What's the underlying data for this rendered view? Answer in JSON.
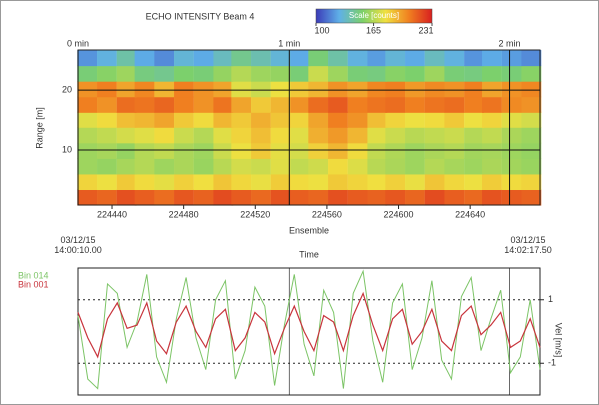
{
  "chart_data": [
    {
      "type": "heatmap",
      "title": "ECHO INTENSITY Beam 4",
      "xlabel": "Ensemble",
      "ylabel": "Range [m]",
      "colorbar_title": "Scale [counts]",
      "zlim": [
        100,
        231
      ],
      "zticks": [
        100,
        165,
        231
      ],
      "colorscale": [
        "#3b3bb8",
        "#5fb0e8",
        "#7cd06a",
        "#f0e040",
        "#f08020",
        "#d82020"
      ],
      "xlim": [
        224421,
        224679
      ],
      "xticks": [
        224440,
        224480,
        224520,
        224560,
        224600,
        224640
      ],
      "x2ticks": [
        {
          "value": 224421,
          "label": "0 min"
        },
        {
          "value": 224539,
          "label": "1 min"
        },
        {
          "value": 224662,
          "label": "2 min"
        }
      ],
      "ylim": [
        0.8,
        26.7
      ],
      "yticks": [
        10,
        20
      ],
      "grid": true,
      "x": [
        224426,
        224437,
        224448,
        224458,
        224469,
        224480,
        224491,
        224502,
        224512,
        224523,
        224534,
        224545,
        224555,
        224566,
        224577,
        224588,
        224598,
        224609,
        224620,
        224631,
        224642,
        224652,
        224663,
        224674
      ],
      "y": [
        2.1,
        4.7,
        7.3,
        9.9,
        12.5,
        15.1,
        17.6,
        20.2,
        22.8,
        25.4
      ],
      "z": [
        [
          215,
          212,
          218,
          214,
          210,
          216,
          213,
          219,
          215,
          211,
          217,
          214,
          212,
          218,
          215,
          213,
          216,
          212,
          219,
          214,
          211,
          217,
          215,
          213
        ],
        [
          182,
          178,
          185,
          180,
          176,
          183,
          179,
          186,
          181,
          177,
          184,
          180,
          178,
          185,
          182,
          179,
          183,
          177,
          186,
          181,
          178,
          184,
          180,
          182
        ],
        [
          160,
          158,
          162,
          165,
          160,
          163,
          159,
          166,
          172,
          170,
          175,
          168,
          171,
          180,
          174,
          166,
          163,
          160,
          165,
          162,
          160,
          163,
          161,
          159
        ],
        [
          160,
          162,
          158,
          165,
          168,
          163,
          160,
          170,
          178,
          185,
          176,
          172,
          183,
          190,
          180,
          168,
          164,
          160,
          163,
          165,
          161,
          162,
          160,
          158
        ],
        [
          165,
          168,
          172,
          175,
          180,
          170,
          165,
          175,
          182,
          188,
          180,
          175,
          192,
          198,
          190,
          175,
          170,
          166,
          168,
          170,
          165,
          168,
          163,
          160
        ],
        [
          175,
          180,
          188,
          190,
          195,
          185,
          180,
          190,
          185,
          192,
          186,
          182,
          195,
          205,
          200,
          188,
          182,
          178,
          180,
          185,
          178,
          182,
          175,
          172
        ],
        [
          205,
          200,
          210,
          208,
          212,
          205,
          200,
          208,
          195,
          185,
          190,
          200,
          210,
          215,
          205,
          208,
          210,
          205,
          208,
          210,
          205,
          208,
          202,
          200
        ],
        [
          200,
          205,
          195,
          203,
          190,
          205,
          200,
          195,
          175,
          170,
          178,
          185,
          190,
          200,
          195,
          203,
          205,
          198,
          202,
          200,
          205,
          195,
          200,
          203
        ],
        [
          150,
          155,
          160,
          148,
          145,
          152,
          150,
          158,
          165,
          160,
          158,
          150,
          170,
          160,
          150,
          148,
          155,
          152,
          160,
          150,
          148,
          152,
          150,
          155
        ],
        [
          120,
          128,
          140,
          125,
          118,
          130,
          125,
          135,
          145,
          138,
          130,
          125,
          150,
          140,
          128,
          122,
          130,
          125,
          135,
          128,
          120,
          125,
          122,
          118
        ]
      ]
    },
    {
      "type": "line",
      "xlabel": "Time",
      "start_label": "03/12/15 14:00:10.00",
      "end_label": "03/12/15 14:02:17.50",
      "ylabel": "Vel [m/s]",
      "ylim": [
        -2,
        2
      ],
      "yticks": [
        -1,
        1
      ],
      "grid": true,
      "series": [
        {
          "name": "Bin 014",
          "color": "#7cc466",
          "values": [
            0.5,
            -1.5,
            -1.8,
            1.5,
            1.2,
            -0.5,
            0.3,
            1.8,
            -0.8,
            -1.6,
            0.4,
            1.7,
            -0.2,
            -1.2,
            1.0,
            1.6,
            -1.5,
            -0.6,
            1.4,
            0.8,
            -1.7,
            0.2,
            1.8,
            -0.4,
            -1.4,
            1.3,
            0.6,
            -1.8,
            1.2,
            1.9,
            -0.3,
            -1.6,
            0.9,
            1.5,
            -1.2,
            -0.2,
            1.6,
            -0.9,
            -1.5,
            1.1,
            1.7,
            -0.6,
            0.4,
            1.3,
            -1.3,
            -0.8,
            1.0,
            -1.2
          ]
        },
        {
          "name": "Bin 001",
          "color": "#c8343c",
          "values": [
            0.6,
            -0.2,
            -0.8,
            0.4,
            0.9,
            0.1,
            0.2,
            0.9,
            -0.3,
            -0.7,
            0.3,
            0.8,
            0.0,
            -0.5,
            0.4,
            0.7,
            -0.6,
            -0.2,
            0.6,
            0.3,
            -0.7,
            0.1,
            0.8,
            0.0,
            -0.6,
            0.5,
            0.3,
            -0.6,
            0.5,
            1.2,
            0.2,
            -0.6,
            0.4,
            0.7,
            -0.4,
            0.0,
            0.7,
            -0.3,
            -0.6,
            0.5,
            0.8,
            -0.1,
            0.2,
            0.6,
            -0.5,
            -0.3,
            0.4,
            -0.5
          ]
        }
      ]
    }
  ]
}
